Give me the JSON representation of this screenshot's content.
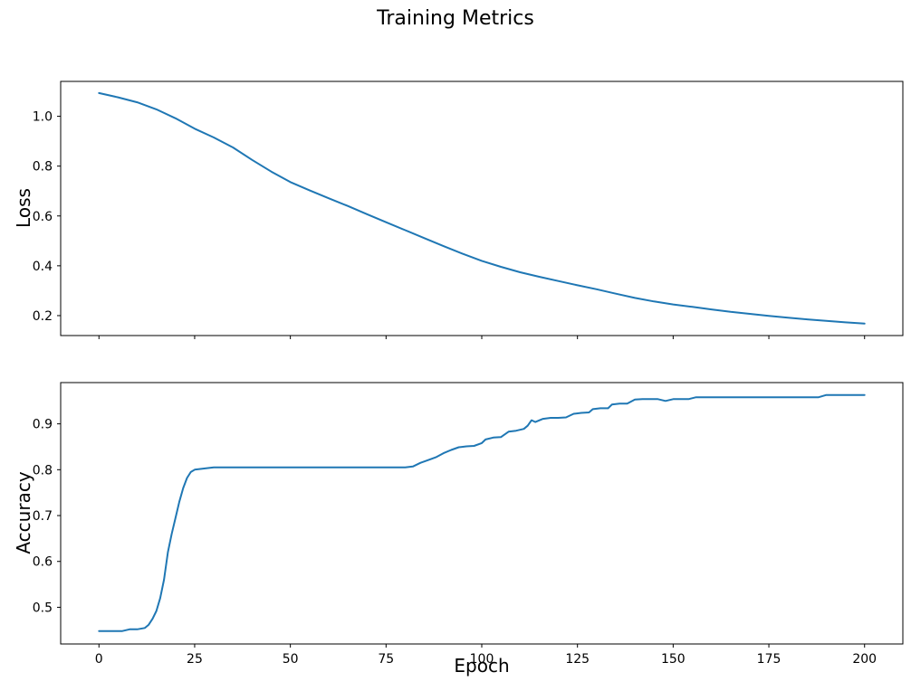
{
  "figure": {
    "title": "Training Metrics",
    "background_color": "#ffffff",
    "line_color": "#1f77b4",
    "text_color": "#000000",
    "spine_color": "#000000"
  },
  "chart_data": [
    {
      "type": "line",
      "name": "loss",
      "xlabel": "",
      "ylabel": "Loss",
      "xlim": [
        -10,
        210
      ],
      "ylim": [
        0.12,
        1.14
      ],
      "xticks": [
        0,
        25,
        50,
        75,
        100,
        125,
        150,
        175,
        200
      ],
      "xtick_labels_visible": false,
      "yticks": [
        0.2,
        0.4,
        0.6,
        0.8,
        1.0
      ],
      "grid": false,
      "legend": null,
      "x": [
        0,
        5,
        10,
        15,
        20,
        25,
        30,
        35,
        40,
        45,
        50,
        55,
        60,
        65,
        70,
        75,
        80,
        85,
        90,
        95,
        100,
        105,
        110,
        115,
        120,
        125,
        130,
        135,
        140,
        145,
        150,
        155,
        160,
        165,
        170,
        175,
        180,
        185,
        190,
        195,
        200
      ],
      "y": [
        1.093,
        1.076,
        1.056,
        1.028,
        0.992,
        0.95,
        0.915,
        0.875,
        0.825,
        0.778,
        0.736,
        0.703,
        0.671,
        0.64,
        0.607,
        0.575,
        0.543,
        0.511,
        0.479,
        0.448,
        0.42,
        0.396,
        0.374,
        0.356,
        0.339,
        0.322,
        0.306,
        0.288,
        0.271,
        0.257,
        0.245,
        0.235,
        0.225,
        0.215,
        0.207,
        0.199,
        0.192,
        0.185,
        0.179,
        0.173,
        0.168
      ]
    },
    {
      "type": "line",
      "name": "accuracy",
      "xlabel": "Epoch",
      "ylabel": "Accuracy",
      "xlim": [
        -10,
        210
      ],
      "ylim": [
        0.42,
        0.99
      ],
      "xticks": [
        0,
        25,
        50,
        75,
        100,
        125,
        150,
        175,
        200
      ],
      "xtick_labels_visible": true,
      "yticks": [
        0.5,
        0.6,
        0.7,
        0.8,
        0.9
      ],
      "grid": false,
      "legend": null,
      "x": [
        0,
        2,
        4,
        6,
        8,
        10,
        12,
        13,
        14,
        15,
        16,
        17,
        18,
        19,
        20,
        21,
        22,
        23,
        24,
        25,
        26,
        28,
        30,
        40,
        50,
        60,
        70,
        80,
        82,
        84,
        86,
        88,
        90,
        92,
        94,
        96,
        98,
        100,
        101,
        103,
        105,
        107,
        109,
        111,
        112,
        113,
        114,
        116,
        118,
        120,
        122,
        124,
        126,
        128,
        129,
        131,
        133,
        134,
        136,
        138,
        140,
        142,
        144,
        146,
        148,
        150,
        152,
        154,
        156,
        160,
        165,
        170,
        175,
        180,
        185,
        188,
        190,
        195,
        200
      ],
      "y": [
        0.448,
        0.448,
        0.448,
        0.448,
        0.452,
        0.452,
        0.455,
        0.462,
        0.475,
        0.492,
        0.52,
        0.56,
        0.62,
        0.66,
        0.695,
        0.73,
        0.76,
        0.782,
        0.795,
        0.8,
        0.801,
        0.803,
        0.805,
        0.805,
        0.805,
        0.805,
        0.805,
        0.805,
        0.807,
        0.815,
        0.821,
        0.827,
        0.836,
        0.843,
        0.849,
        0.851,
        0.852,
        0.858,
        0.866,
        0.87,
        0.871,
        0.883,
        0.885,
        0.889,
        0.896,
        0.908,
        0.904,
        0.911,
        0.913,
        0.913,
        0.914,
        0.922,
        0.924,
        0.925,
        0.932,
        0.934,
        0.934,
        0.942,
        0.944,
        0.944,
        0.953,
        0.954,
        0.954,
        0.954,
        0.95,
        0.954,
        0.954,
        0.954,
        0.958,
        0.958,
        0.958,
        0.958,
        0.958,
        0.958,
        0.958,
        0.958,
        0.963,
        0.963,
        0.963
      ]
    }
  ]
}
